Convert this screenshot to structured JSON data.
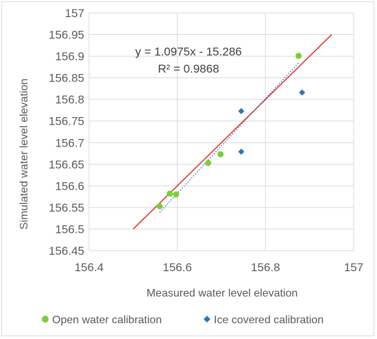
{
  "chart_data": {
    "type": "scatter",
    "xlabel": "Measured water level elevation",
    "ylabel": "Simulated water level elevation",
    "xlim": [
      156.4,
      157
    ],
    "ylim": [
      156.45,
      157
    ],
    "x_ticks": [
      "156.4",
      "156.6",
      "156.8",
      "157"
    ],
    "y_ticks": [
      "156.45",
      "156.5",
      "156.55",
      "156.6",
      "156.65",
      "156.7",
      "156.75",
      "156.8",
      "156.85",
      "156.9",
      "156.95",
      "157"
    ],
    "grid": "horizontal and vertical",
    "legend_position": "bottom",
    "series": [
      {
        "name": "Open water calibration",
        "marker": "circle",
        "color": "#7ccf3a",
        "points": [
          {
            "x": 156.56,
            "y": 156.553
          },
          {
            "x": 156.583,
            "y": 156.582
          },
          {
            "x": 156.597,
            "y": 156.58
          },
          {
            "x": 156.67,
            "y": 156.653
          },
          {
            "x": 156.698,
            "y": 156.673
          },
          {
            "x": 156.875,
            "y": 156.901
          }
        ]
      },
      {
        "name": "Ice covered calibration",
        "marker": "diamond",
        "color": "#2e75b6",
        "points": [
          {
            "x": 156.745,
            "y": 156.773
          },
          {
            "x": 156.745,
            "y": 156.679
          },
          {
            "x": 156.883,
            "y": 156.816
          }
        ]
      }
    ],
    "lines": [
      {
        "kind": "one-to-one",
        "color": "#e02a1c",
        "from": [
          156.5,
          156.5
        ],
        "to": [
          156.95,
          156.95
        ]
      },
      {
        "kind": "trendline",
        "style": "dotted",
        "color": "#2e75b6",
        "slope": 1.0975,
        "intercept": -15.286,
        "x_range": [
          156.56,
          156.875
        ]
      }
    ],
    "annotation": {
      "equation": "y = 1.0975x - 15.286",
      "r_squared": "R² = 0.9868"
    }
  }
}
